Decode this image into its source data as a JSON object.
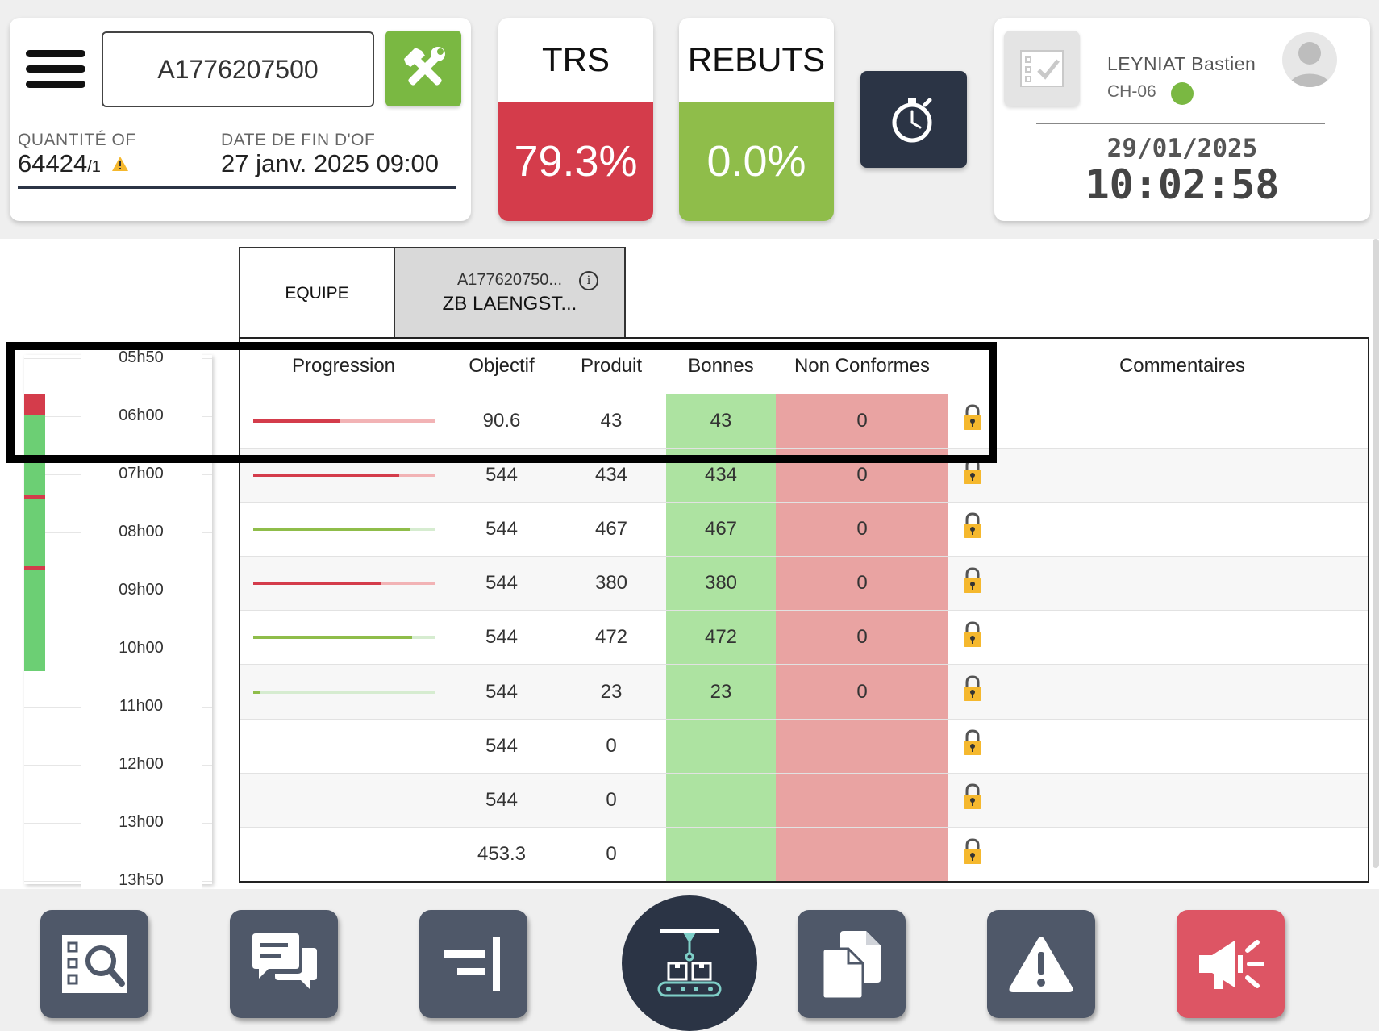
{
  "header": {
    "of_number": "A1776207500",
    "quantity_label": "QUANTITÉ OF",
    "quantity_value": "64424",
    "quantity_suffix": "/1",
    "end_date_label": "DATE DE FIN D'OF",
    "end_date_value": "27 janv. 2025 09:00"
  },
  "kpis": {
    "trs_label": "TRS",
    "trs_value": "79.3%",
    "trs_color": "#d43c4b",
    "rebuts_label": "REBUTS",
    "rebuts_value": "0.0%",
    "rebuts_color": "#8fbd4a"
  },
  "user": {
    "name": "LEYNIAT Bastien",
    "station": "CH-06",
    "status_color": "#7ab842",
    "date": "29/01/2025",
    "time": "10:02:58"
  },
  "tabs": {
    "equipe": "EQUIPE",
    "of_code": "A177620750...",
    "of_name": "ZB LAENGST..."
  },
  "timeline": {
    "labels": [
      "05h50",
      "06h00",
      "07h00",
      "08h00",
      "09h00",
      "10h00",
      "11h00",
      "12h00",
      "13h00",
      "13h50"
    ]
  },
  "table": {
    "headers": {
      "progression": "Progression",
      "objectif": "Objectif",
      "produit": "Produit",
      "bonnes": "Bonnes",
      "non_conformes": "Non Conformes",
      "commentaires": "Commentaires"
    },
    "rows": [
      {
        "progress": 0.48,
        "progress_color": "red",
        "objectif": "90.6",
        "produit": "43",
        "bonnes": "43",
        "non_conformes": "0"
      },
      {
        "progress": 0.8,
        "progress_color": "red",
        "objectif": "544",
        "produit": "434",
        "bonnes": "434",
        "non_conformes": "0"
      },
      {
        "progress": 0.86,
        "progress_color": "green",
        "objectif": "544",
        "produit": "467",
        "bonnes": "467",
        "non_conformes": "0"
      },
      {
        "progress": 0.7,
        "progress_color": "red",
        "objectif": "544",
        "produit": "380",
        "bonnes": "380",
        "non_conformes": "0"
      },
      {
        "progress": 0.87,
        "progress_color": "green",
        "objectif": "544",
        "produit": "472",
        "bonnes": "472",
        "non_conformes": "0"
      },
      {
        "progress": 0.04,
        "progress_color": "green",
        "objectif": "544",
        "produit": "23",
        "bonnes": "23",
        "non_conformes": "0"
      },
      {
        "progress": null,
        "progress_color": "",
        "objectif": "544",
        "produit": "0",
        "bonnes": "",
        "non_conformes": ""
      },
      {
        "progress": null,
        "progress_color": "",
        "objectif": "544",
        "produit": "0",
        "bonnes": "",
        "non_conformes": ""
      },
      {
        "progress": null,
        "progress_color": "",
        "objectif": "453.3",
        "produit": "0",
        "bonnes": "",
        "non_conformes": ""
      }
    ]
  },
  "colors": {
    "dark_navy": "#2b3445",
    "button_gray": "#4f5869",
    "alarm_red": "#dd5564",
    "accent_green": "#7ab842",
    "progress_red": "#d43c4b",
    "progress_red_light": "#f2b3b5",
    "progress_green": "#8fbd4a",
    "progress_green_light": "#d6ecd0",
    "bonnes_bg": "#ade3a1",
    "nc_bg": "#e9a3a2",
    "lock_yellow": "#f5b82e"
  },
  "bottom_bar": {
    "buttons": [
      "checklist-search-icon",
      "chat-icon",
      "align-right-icon",
      "conveyor-icon",
      "documents-icon",
      "warning-icon",
      "megaphone-icon"
    ]
  }
}
